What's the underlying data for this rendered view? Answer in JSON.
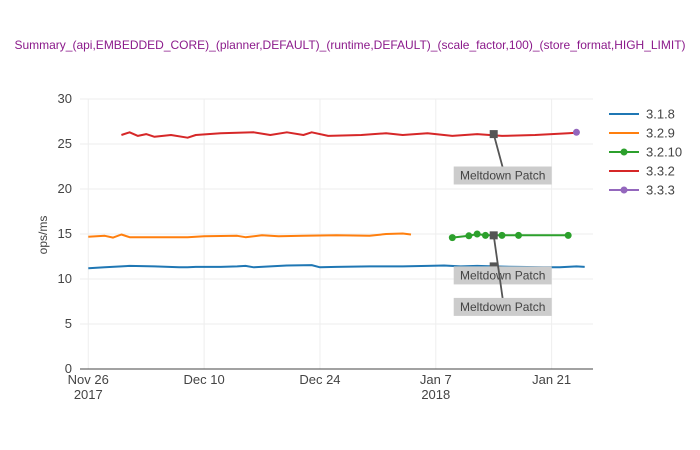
{
  "chart_data": {
    "type": "line",
    "title": "Summary_(api,EMBEDDED_CORE)_(planner,DEFAULT)_(runtime,DEFAULT)_(scale_factor,100)_(store_format,HIGH_LIMIT)",
    "xlabel": "",
    "ylabel": "ops/ms",
    "ylim": [
      0,
      30
    ],
    "xlim": [
      "2017-11-25",
      "2018-01-26"
    ],
    "y_ticks": [
      "0",
      "5",
      "10",
      "15",
      "20",
      "25",
      "30"
    ],
    "x_ticks": [
      {
        "date": "2017-11-26",
        "line1": "Nov 26",
        "line2": "2017"
      },
      {
        "date": "2017-12-10",
        "line1": "Dec 10",
        "line2": ""
      },
      {
        "date": "2017-12-24",
        "line1": "Dec 24",
        "line2": ""
      },
      {
        "date": "2018-01-07",
        "line1": "Jan 7",
        "line2": "2018"
      },
      {
        "date": "2018-01-21",
        "line1": "Jan 21",
        "line2": ""
      }
    ],
    "grid": true,
    "legend_position": "top-right",
    "series": [
      {
        "name": "3.1.8",
        "color": "#1f77b4",
        "markers": false,
        "points": [
          [
            "2017-11-26",
            11.2
          ],
          [
            "2017-11-28",
            11.3
          ],
          [
            "2017-11-30",
            11.4
          ],
          [
            "2017-12-01",
            11.45
          ],
          [
            "2017-12-04",
            11.4
          ],
          [
            "2017-12-07",
            11.3
          ],
          [
            "2017-12-08",
            11.3
          ],
          [
            "2017-12-09",
            11.35
          ],
          [
            "2017-12-12",
            11.35
          ],
          [
            "2017-12-14",
            11.4
          ],
          [
            "2017-12-15",
            11.45
          ],
          [
            "2017-12-16",
            11.3
          ],
          [
            "2017-12-18",
            11.4
          ],
          [
            "2017-12-20",
            11.5
          ],
          [
            "2017-12-23",
            11.55
          ],
          [
            "2017-12-24",
            11.3
          ],
          [
            "2017-12-26",
            11.35
          ],
          [
            "2017-12-30",
            11.4
          ],
          [
            "2018-01-03",
            11.4
          ],
          [
            "2018-01-06",
            11.45
          ],
          [
            "2018-01-08",
            11.5
          ],
          [
            "2018-01-10",
            11.4
          ],
          [
            "2018-01-12",
            11.45
          ],
          [
            "2018-01-14",
            11.4
          ],
          [
            "2018-01-17",
            11.35
          ],
          [
            "2018-01-20",
            11.3
          ],
          [
            "2018-01-22",
            11.3
          ],
          [
            "2018-01-24",
            11.4
          ],
          [
            "2018-01-25",
            11.35
          ]
        ]
      },
      {
        "name": "3.2.9",
        "color": "#ff7f0e",
        "markers": false,
        "points": [
          [
            "2017-11-26",
            14.7
          ],
          [
            "2017-11-27",
            14.75
          ],
          [
            "2017-11-28",
            14.8
          ],
          [
            "2017-11-29",
            14.6
          ],
          [
            "2017-11-30",
            14.95
          ],
          [
            "2017-12-01",
            14.65
          ],
          [
            "2017-12-04",
            14.65
          ],
          [
            "2017-12-08",
            14.65
          ],
          [
            "2017-12-10",
            14.75
          ],
          [
            "2017-12-14",
            14.8
          ],
          [
            "2017-12-15",
            14.65
          ],
          [
            "2017-12-17",
            14.85
          ],
          [
            "2017-12-19",
            14.75
          ],
          [
            "2017-12-22",
            14.8
          ],
          [
            "2017-12-26",
            14.85
          ],
          [
            "2017-12-30",
            14.8
          ],
          [
            "2018-01-01",
            15.0
          ],
          [
            "2018-01-03",
            15.05
          ],
          [
            "2018-01-04",
            14.95
          ]
        ]
      },
      {
        "name": "3.2.10",
        "color": "#2ca02c",
        "markers": true,
        "points": [
          [
            "2018-01-09",
            14.6
          ],
          [
            "2018-01-11",
            14.8
          ],
          [
            "2018-01-12",
            15.0
          ],
          [
            "2018-01-13",
            14.85
          ],
          [
            "2018-01-15",
            14.85
          ],
          [
            "2018-01-17",
            14.85
          ],
          [
            "2018-01-23",
            14.85
          ]
        ]
      },
      {
        "name": "3.3.2",
        "color": "#d62728",
        "markers": false,
        "points": [
          [
            "2017-11-30",
            26.0
          ],
          [
            "2017-12-01",
            26.3
          ],
          [
            "2017-12-02",
            25.9
          ],
          [
            "2017-12-03",
            26.1
          ],
          [
            "2017-12-04",
            25.8
          ],
          [
            "2017-12-06",
            26.0
          ],
          [
            "2017-12-08",
            25.7
          ],
          [
            "2017-12-09",
            26.0
          ],
          [
            "2017-12-12",
            26.2
          ],
          [
            "2017-12-16",
            26.3
          ],
          [
            "2017-12-18",
            26.0
          ],
          [
            "2017-12-20",
            26.3
          ],
          [
            "2017-12-22",
            26.0
          ],
          [
            "2017-12-23",
            26.3
          ],
          [
            "2017-12-25",
            25.9
          ],
          [
            "2017-12-29",
            26.0
          ],
          [
            "2018-01-01",
            26.2
          ],
          [
            "2018-01-03",
            26.0
          ],
          [
            "2018-01-06",
            26.2
          ],
          [
            "2018-01-09",
            25.9
          ],
          [
            "2018-01-12",
            26.1
          ],
          [
            "2018-01-15",
            25.9
          ],
          [
            "2018-01-19",
            26.0
          ],
          [
            "2018-01-23",
            26.2
          ],
          [
            "2018-01-24",
            26.25
          ]
        ]
      },
      {
        "name": "3.3.3",
        "color": "#9467bd",
        "markers": true,
        "points": [
          [
            "2018-01-24",
            26.3
          ]
        ]
      }
    ],
    "annotations": [
      {
        "text": "Meltdown Patch",
        "date": "2018-01-14",
        "y": 26.1,
        "label_y": 21.5
      },
      {
        "text": "Meltdown Patch",
        "date": "2018-01-14",
        "y": 11.4,
        "label_y": 10.4
      },
      {
        "text": "Meltdown Patch",
        "date": "2018-01-14",
        "y": 14.85,
        "label_y": 6.9
      }
    ]
  }
}
